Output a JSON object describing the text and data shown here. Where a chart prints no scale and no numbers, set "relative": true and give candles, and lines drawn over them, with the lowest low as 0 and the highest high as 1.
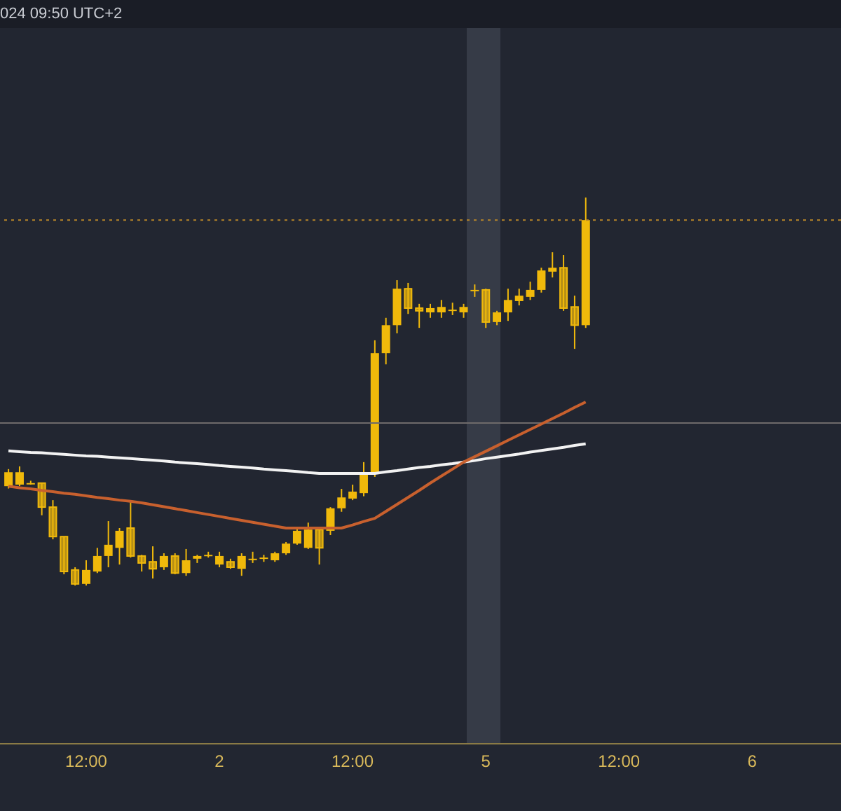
{
  "chart_data": {
    "type": "candlestick",
    "relative": true,
    "color": "#f0b90b",
    "annotations": [
      "024 09:50 UTC+2"
    ],
    "categories": [
      null,
      null,
      null,
      null,
      null,
      null,
      null,
      "12:00",
      null,
      null,
      null,
      null,
      null,
      null,
      null,
      null,
      null,
      null,
      null,
      "2",
      null,
      null,
      null,
      null,
      null,
      null,
      null,
      null,
      null,
      null,
      null,
      "12:00",
      null,
      null,
      null,
      null,
      null,
      null,
      null,
      null,
      null,
      null,
      null,
      "5",
      null,
      null,
      null,
      null,
      null,
      null,
      null,
      null,
      null,
      null,
      null,
      "12:00",
      null,
      null,
      null,
      null,
      null,
      null,
      null,
      null,
      null,
      null,
      null,
      "6",
      null,
      null,
      null,
      null,
      null,
      null,
      null,
      null
    ],
    "ohlc": [
      [
        0.256,
        0.3,
        0.25,
        0.292
      ],
      [
        0.26,
        0.307,
        0.256,
        0.292
      ],
      [
        0.264,
        0.27,
        0.26,
        0.264
      ],
      [
        0.264,
        0.264,
        0.181,
        0.202
      ],
      [
        0.202,
        0.22,
        0.119,
        0.126
      ],
      [
        0.126,
        0.126,
        0.029,
        0.036
      ],
      [
        0.04,
        0.047,
        0,
        0.004
      ],
      [
        0.004,
        0.065,
        0,
        0.04
      ],
      [
        0.036,
        0.097,
        0.032,
        0.076
      ],
      [
        0.076,
        0.166,
        0.047,
        0.105
      ],
      [
        0.097,
        0.148,
        0.054,
        0.141
      ],
      [
        0.148,
        0.217,
        0.072,
        0.076
      ],
      [
        0.076,
        0.079,
        0.036,
        0.058
      ],
      [
        0.061,
        0.101,
        0.018,
        0.043
      ],
      [
        0.047,
        0.083,
        0.04,
        0.076
      ],
      [
        0.076,
        0.083,
        0.029,
        0.032
      ],
      [
        0.032,
        0.094,
        0.025,
        0.065
      ],
      [
        0.069,
        0.079,
        0.058,
        0.076
      ],
      [
        0.079,
        0.087,
        0.072,
        0.079
      ],
      [
        0.054,
        0.087,
        0.047,
        0.076
      ],
      [
        0.061,
        0.069,
        0.043,
        0.047
      ],
      [
        0.043,
        0.083,
        0.025,
        0.076
      ],
      [
        0.069,
        0.087,
        0.058,
        0.069
      ],
      [
        0.069,
        0.079,
        0.061,
        0.072
      ],
      [
        0.065,
        0.087,
        0.061,
        0.083
      ],
      [
        0.083,
        0.112,
        0.079,
        0.108
      ],
      [
        0.108,
        0.148,
        0.105,
        0.141
      ],
      [
        0.097,
        0.162,
        0.094,
        0.144
      ],
      [
        0.144,
        0.148,
        0.054,
        0.097
      ],
      [
        0.141,
        0.202,
        0.13,
        0.199
      ],
      [
        0.199,
        0.249,
        0.19,
        0.227
      ],
      [
        0.224,
        0.26,
        0.22,
        0.242
      ],
      [
        0.238,
        0.318,
        0.23,
        0.289
      ],
      [
        0.289,
        0.632,
        0.28,
        0.599
      ],
      [
        0.599,
        0.69,
        0.57,
        0.671
      ],
      [
        0.671,
        0.787,
        0.65,
        0.765
      ],
      [
        0.765,
        0.78,
        0.7,
        0.715
      ],
      [
        0.715,
        0.726,
        0.664,
        0.708
      ],
      [
        0.704,
        0.726,
        0.69,
        0.715
      ],
      [
        0.704,
        0.736,
        0.69,
        0.718
      ],
      [
        0.711,
        0.729,
        0.697,
        0.711
      ],
      [
        0.704,
        0.726,
        0.69,
        0.718
      ],
      [
        0.762,
        0.776,
        0.744,
        0.762
      ],
      [
        0.762,
        0.765,
        0.664,
        0.679
      ],
      [
        0.679,
        0.708,
        0.671,
        0.704
      ],
      [
        0.704,
        0.765,
        0.682,
        0.736
      ],
      [
        0.733,
        0.765,
        0.722,
        0.747
      ],
      [
        0.744,
        0.783,
        0.736,
        0.762
      ],
      [
        0.762,
        0.819,
        0.755,
        0.812
      ],
      [
        0.809,
        0.859,
        0.794,
        0.819
      ],
      [
        0.819,
        0.852,
        0.708,
        0.715
      ],
      [
        0.718,
        0.747,
        0.61,
        0.671
      ],
      [
        0.671,
        1,
        0.664,
        0.942
      ],
      null,
      null,
      null,
      null,
      null,
      null,
      null,
      null,
      null,
      null,
      null,
      null,
      null,
      null,
      null,
      null,
      null,
      null,
      null,
      null,
      null,
      null,
      null
    ],
    "series": [
      {
        "type": "line",
        "color": "#f2f2f2",
        "values": [
          0.347,
          0.345,
          0.343,
          0.342,
          0.34,
          0.338,
          0.336,
          0.334,
          0.333,
          0.331,
          0.329,
          0.327,
          0.325,
          0.323,
          0.321,
          0.318,
          0.316,
          0.314,
          0.312,
          0.309,
          0.307,
          0.305,
          0.303,
          0.3,
          0.298,
          0.296,
          0.294,
          0.291,
          0.289,
          0.289,
          0.289,
          0.289,
          0.289,
          0.289,
          0.293,
          0.296,
          0.3,
          0.304,
          0.307,
          0.311,
          0.314,
          0.318,
          0.322,
          0.327,
          0.331,
          0.335,
          0.339,
          0.344,
          0.348,
          0.352,
          0.356,
          0.361,
          0.365,
          null,
          null,
          null,
          null,
          null,
          null,
          null,
          null,
          null,
          null,
          null,
          null,
          null,
          null,
          null,
          null,
          null,
          null,
          null,
          null,
          null,
          null,
          null
        ]
      },
      {
        "type": "line",
        "color": "#c8602e",
        "values": [
          0.256,
          0.252,
          0.249,
          0.245,
          0.242,
          0.238,
          0.235,
          0.231,
          0.227,
          0.224,
          0.22,
          0.217,
          0.213,
          0.208,
          0.203,
          0.198,
          0.193,
          0.188,
          0.183,
          0.178,
          0.173,
          0.168,
          0.163,
          0.158,
          0.153,
          0.148,
          0.148,
          0.148,
          0.148,
          0.148,
          0.148,
          0.156,
          0.165,
          0.173,
          0.191,
          0.209,
          0.227,
          0.245,
          0.264,
          0.282,
          0.3,
          0.318,
          0.332,
          0.346,
          0.36,
          0.374,
          0.388,
          0.402,
          0.416,
          0.43,
          0.444,
          0.459,
          0.473,
          null,
          null,
          null,
          null,
          null,
          null,
          null,
          null,
          null,
          null,
          null,
          null,
          null,
          null,
          null,
          null,
          null,
          null,
          null,
          null,
          null,
          null,
          null
        ]
      }
    ],
    "ref_lines": [
      {
        "axis": "y",
        "value": 0.942,
        "color": "#b8862a",
        "line_style": "dotted"
      },
      {
        "axis": "y",
        "value": 0.419,
        "color": "#6e6a6a",
        "line_style": "solid"
      }
    ]
  }
}
